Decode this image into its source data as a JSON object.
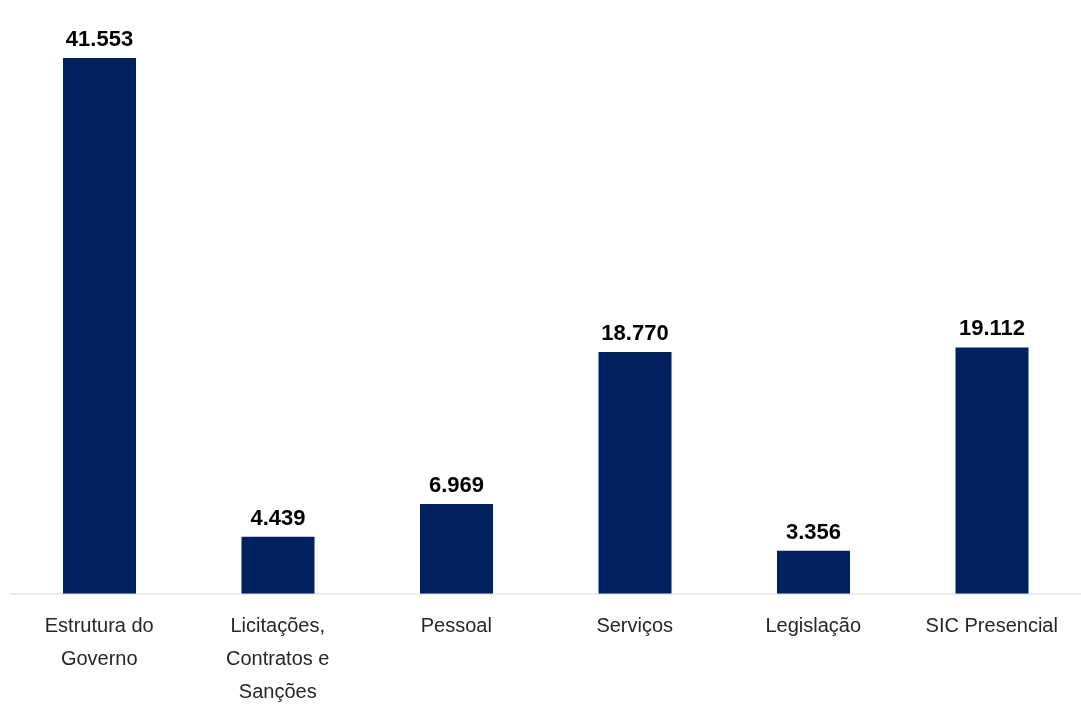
{
  "chart_data": {
    "type": "bar",
    "categories": [
      "Estrutura do Governo",
      "Licitações, Contratos e Sanções",
      "Pessoal",
      "Serviços",
      "Legislação",
      "SIC Presencial"
    ],
    "values": [
      41553,
      4439,
      6969,
      18770,
      3356,
      19112
    ],
    "value_labels": [
      "41.553",
      "4.439",
      "6.969",
      "18.770",
      "3.356",
      "19.112"
    ],
    "color": "#002060",
    "grid": false,
    "legend": false
  }
}
